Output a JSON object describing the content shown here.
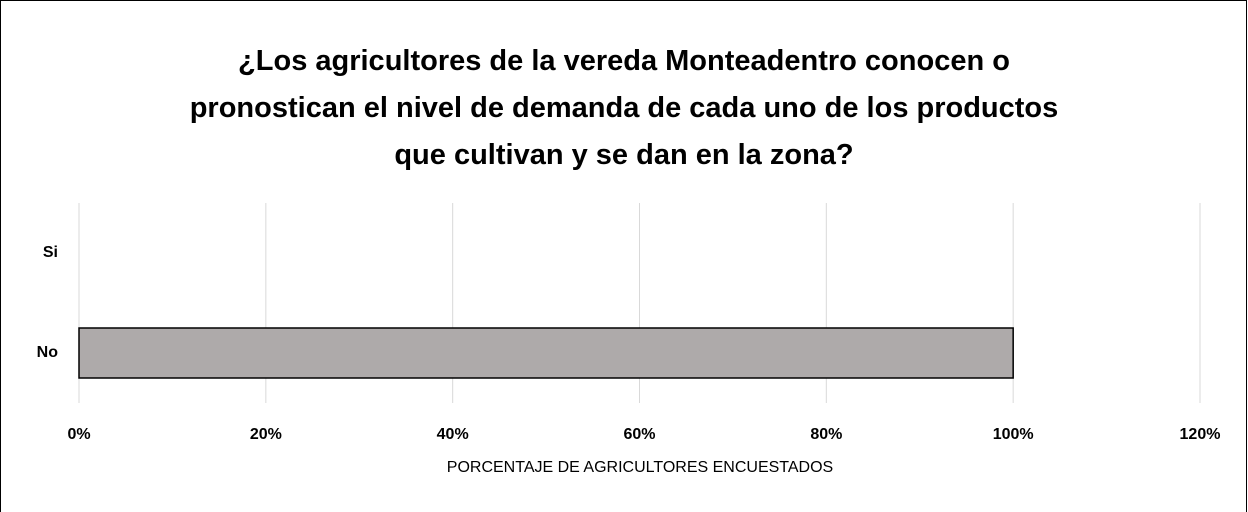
{
  "chart_data": {
    "type": "hbar",
    "title": "¿Los agricultores de la vereda Monteadentro conocen o pronostican el nivel de demanda de cada uno de los productos que cultivan y se dan en la zona?",
    "categories": [
      "Si",
      "No"
    ],
    "values": [
      0,
      100
    ],
    "color": "#aeaaaa",
    "xlabel": "PORCENTAJE DE AGRICULTORES ENCUESTADOS",
    "xlim": [
      0,
      120
    ],
    "xticks": [
      {
        "value": 0,
        "label": "0%"
      },
      {
        "value": 20,
        "label": "20%"
      },
      {
        "value": 40,
        "label": "40%"
      },
      {
        "value": 60,
        "label": "60%"
      },
      {
        "value": 80,
        "label": "80%"
      },
      {
        "value": 100,
        "label": "100%"
      },
      {
        "value": 120,
        "label": "120%"
      }
    ],
    "grid": true
  }
}
